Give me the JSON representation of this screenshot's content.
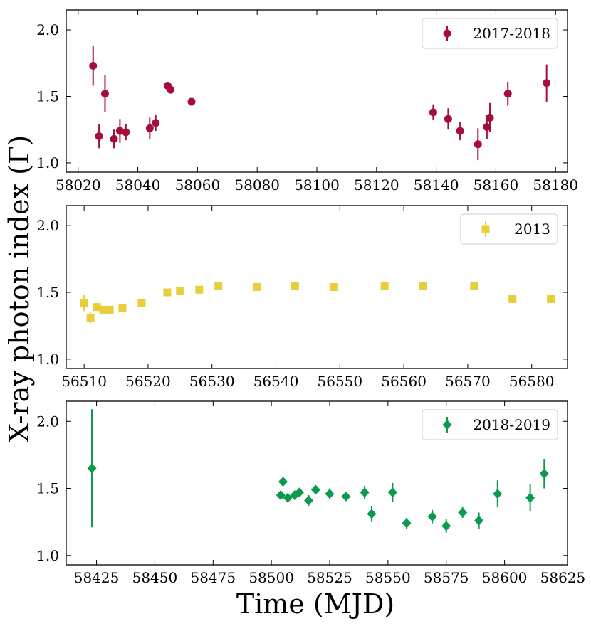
{
  "chart_data": {
    "type": "scatter",
    "ylabel": "X-ray photon index (Γ)",
    "xlabel": "Time (MJD)",
    "panels": [
      {
        "legend": "2017-2018",
        "marker": "circle",
        "color": "#a50d3a",
        "xlim": [
          58016,
          58184
        ],
        "ylim": [
          0.93,
          2.15
        ],
        "xticks": [
          58020,
          58040,
          58060,
          58080,
          58100,
          58120,
          58140,
          58160,
          58180
        ],
        "yticks": [
          1.0,
          1.5,
          2.0
        ],
        "ytick_labels": [
          "1.0",
          "1.5",
          "2.0"
        ],
        "points": [
          {
            "x": 58025,
            "y": 1.73,
            "err": 0.15
          },
          {
            "x": 58027,
            "y": 1.2,
            "err": 0.09
          },
          {
            "x": 58029,
            "y": 1.52,
            "err": 0.14
          },
          {
            "x": 58032,
            "y": 1.18,
            "err": 0.07
          },
          {
            "x": 58034,
            "y": 1.24,
            "err": 0.09
          },
          {
            "x": 58036,
            "y": 1.23,
            "err": 0.06
          },
          {
            "x": 58044,
            "y": 1.26,
            "err": 0.08
          },
          {
            "x": 58046,
            "y": 1.3,
            "err": 0.06
          },
          {
            "x": 58050,
            "y": 1.58,
            "err": 0.0
          },
          {
            "x": 58051,
            "y": 1.55,
            "err": 0.0
          },
          {
            "x": 58058,
            "y": 1.46,
            "err": 0.0
          },
          {
            "x": 58139,
            "y": 1.38,
            "err": 0.06
          },
          {
            "x": 58144,
            "y": 1.33,
            "err": 0.08
          },
          {
            "x": 58148,
            "y": 1.24,
            "err": 0.07
          },
          {
            "x": 58154,
            "y": 1.14,
            "err": 0.12
          },
          {
            "x": 58157,
            "y": 1.27,
            "err": 0.09
          },
          {
            "x": 58158,
            "y": 1.34,
            "err": 0.11
          },
          {
            "x": 58164,
            "y": 1.52,
            "err": 0.09
          },
          {
            "x": 58177,
            "y": 1.6,
            "err": 0.14
          }
        ]
      },
      {
        "legend": "2013",
        "marker": "square",
        "color": "#e8cf3a",
        "xlim": [
          56507.2,
          56585.6
        ],
        "ylim": [
          0.93,
          2.15
        ],
        "xticks": [
          56510,
          56520,
          56530,
          56540,
          56550,
          56560,
          56570,
          56580
        ],
        "yticks": [
          1.0,
          1.5,
          2.0
        ],
        "ytick_labels": [
          "1.0",
          "1.5",
          "2.0"
        ],
        "points": [
          {
            "x": 56510,
            "y": 1.42,
            "err": 0.06
          },
          {
            "x": 56511,
            "y": 1.31,
            "err": 0.04
          },
          {
            "x": 56512,
            "y": 1.39,
            "err": 0.02
          },
          {
            "x": 56513,
            "y": 1.37,
            "err": 0.02
          },
          {
            "x": 56514,
            "y": 1.37,
            "err": 0.02
          },
          {
            "x": 56516,
            "y": 1.38,
            "err": 0.02
          },
          {
            "x": 56519,
            "y": 1.42,
            "err": 0.02
          },
          {
            "x": 56523,
            "y": 1.5,
            "err": 0.02
          },
          {
            "x": 56525,
            "y": 1.51,
            "err": 0.02
          },
          {
            "x": 56528,
            "y": 1.52,
            "err": 0.02
          },
          {
            "x": 56531,
            "y": 1.55,
            "err": 0.02
          },
          {
            "x": 56537,
            "y": 1.54,
            "err": 0.02
          },
          {
            "x": 56543,
            "y": 1.55,
            "err": 0.02
          },
          {
            "x": 56549,
            "y": 1.54,
            "err": 0.02
          },
          {
            "x": 56557,
            "y": 1.55,
            "err": 0.02
          },
          {
            "x": 56563,
            "y": 1.55,
            "err": 0.02
          },
          {
            "x": 56571,
            "y": 1.55,
            "err": 0.02
          },
          {
            "x": 56577,
            "y": 1.45,
            "err": 0.03
          },
          {
            "x": 56583,
            "y": 1.45,
            "err": 0.03
          }
        ]
      },
      {
        "legend": "2018-2019",
        "marker": "diamond",
        "color": "#0d9a4c",
        "xlim": [
          58412,
          58627
        ],
        "ylim": [
          0.93,
          2.15
        ],
        "xticks": [
          58425,
          58450,
          58475,
          58500,
          58525,
          58550,
          58575,
          58600,
          58625
        ],
        "yticks": [
          1.0,
          1.5,
          2.0
        ],
        "ytick_labels": [
          "1.0",
          "1.5",
          "2.0"
        ],
        "points": [
          {
            "x": 58423,
            "y": 1.65,
            "err": 0.44
          },
          {
            "x": 58504,
            "y": 1.45,
            "err": 0.03
          },
          {
            "x": 58505,
            "y": 1.55,
            "err": 0.02
          },
          {
            "x": 58507,
            "y": 1.43,
            "err": 0.03
          },
          {
            "x": 58510,
            "y": 1.45,
            "err": 0.03
          },
          {
            "x": 58512,
            "y": 1.47,
            "err": 0.03
          },
          {
            "x": 58516,
            "y": 1.41,
            "err": 0.04
          },
          {
            "x": 58519,
            "y": 1.49,
            "err": 0.03
          },
          {
            "x": 58525,
            "y": 1.46,
            "err": 0.04
          },
          {
            "x": 58532,
            "y": 1.44,
            "err": 0.03
          },
          {
            "x": 58540,
            "y": 1.47,
            "err": 0.05
          },
          {
            "x": 58543,
            "y": 1.31,
            "err": 0.06
          },
          {
            "x": 58552,
            "y": 1.47,
            "err": 0.07
          },
          {
            "x": 58558,
            "y": 1.24,
            "err": 0.04
          },
          {
            "x": 58569,
            "y": 1.29,
            "err": 0.05
          },
          {
            "x": 58575,
            "y": 1.22,
            "err": 0.05
          },
          {
            "x": 58582,
            "y": 1.32,
            "err": 0.04
          },
          {
            "x": 58589,
            "y": 1.26,
            "err": 0.06
          },
          {
            "x": 58597,
            "y": 1.46,
            "err": 0.1
          },
          {
            "x": 58611,
            "y": 1.43,
            "err": 0.1
          },
          {
            "x": 58617,
            "y": 1.61,
            "err": 0.11
          }
        ]
      }
    ]
  }
}
